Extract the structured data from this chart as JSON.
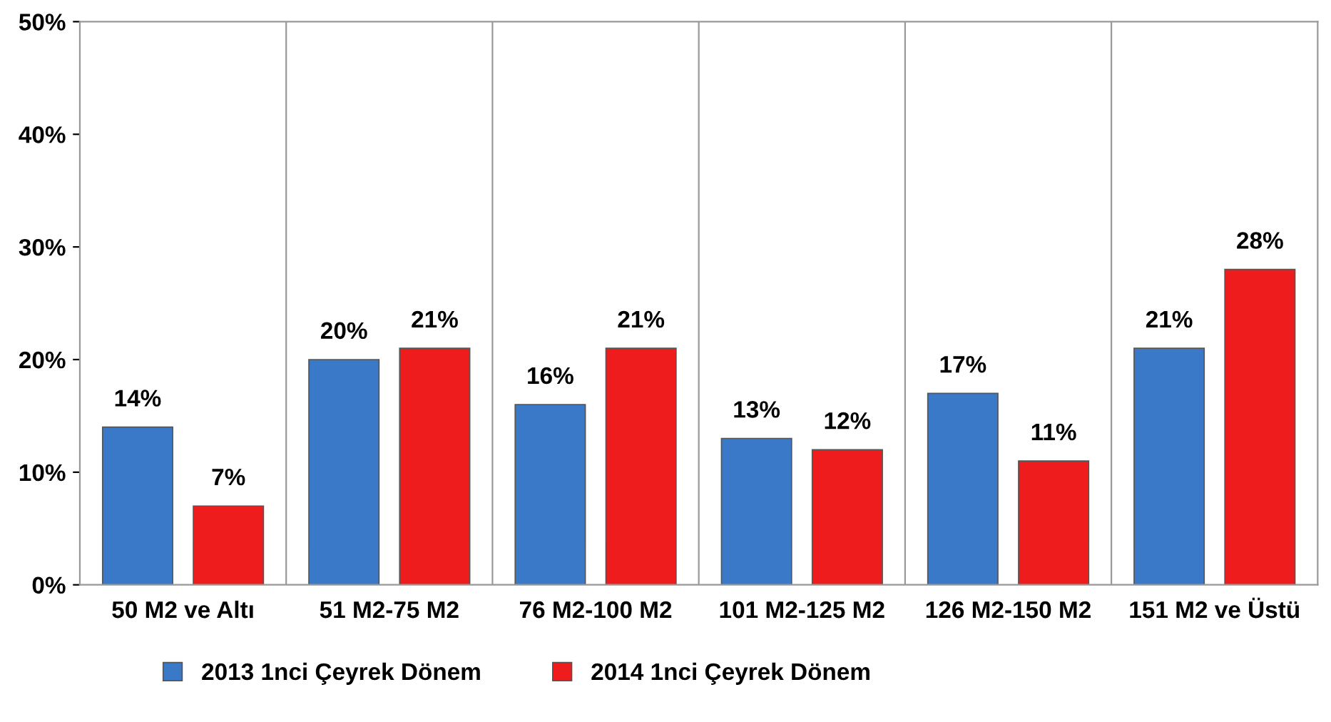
{
  "chart_data": {
    "type": "bar",
    "categories": [
      "50 M2 ve Altı",
      "51 M2-75 M2",
      "76 M2-100 M2",
      "101 M2-125 M2",
      "126 M2-150 M2",
      "151 M2 ve Üstü"
    ],
    "series": [
      {
        "name": "2013 1nci Çeyrek Dönem",
        "color": "#3a78c8",
        "values": [
          14,
          20,
          16,
          13,
          17,
          21
        ],
        "value_labels": [
          "14%",
          "20%",
          "16%",
          "13%",
          "17%",
          "21%"
        ]
      },
      {
        "name": "2014 1nci Çeyrek Dönem",
        "color": "#ee1c1c",
        "values": [
          7,
          21,
          21,
          12,
          11,
          28
        ],
        "value_labels": [
          "7%",
          "21%",
          "21%",
          "12%",
          "11%",
          "28%"
        ]
      }
    ],
    "ylim": [
      0,
      50
    ],
    "yticks": [
      {
        "value": 0,
        "label": "0%"
      },
      {
        "value": 10,
        "label": "10%"
      },
      {
        "value": 20,
        "label": "20%"
      },
      {
        "value": 30,
        "label": "30%"
      },
      {
        "value": 40,
        "label": "40%"
      },
      {
        "value": 50,
        "label": "50%"
      }
    ],
    "grid": "x",
    "legend": "bottom"
  }
}
